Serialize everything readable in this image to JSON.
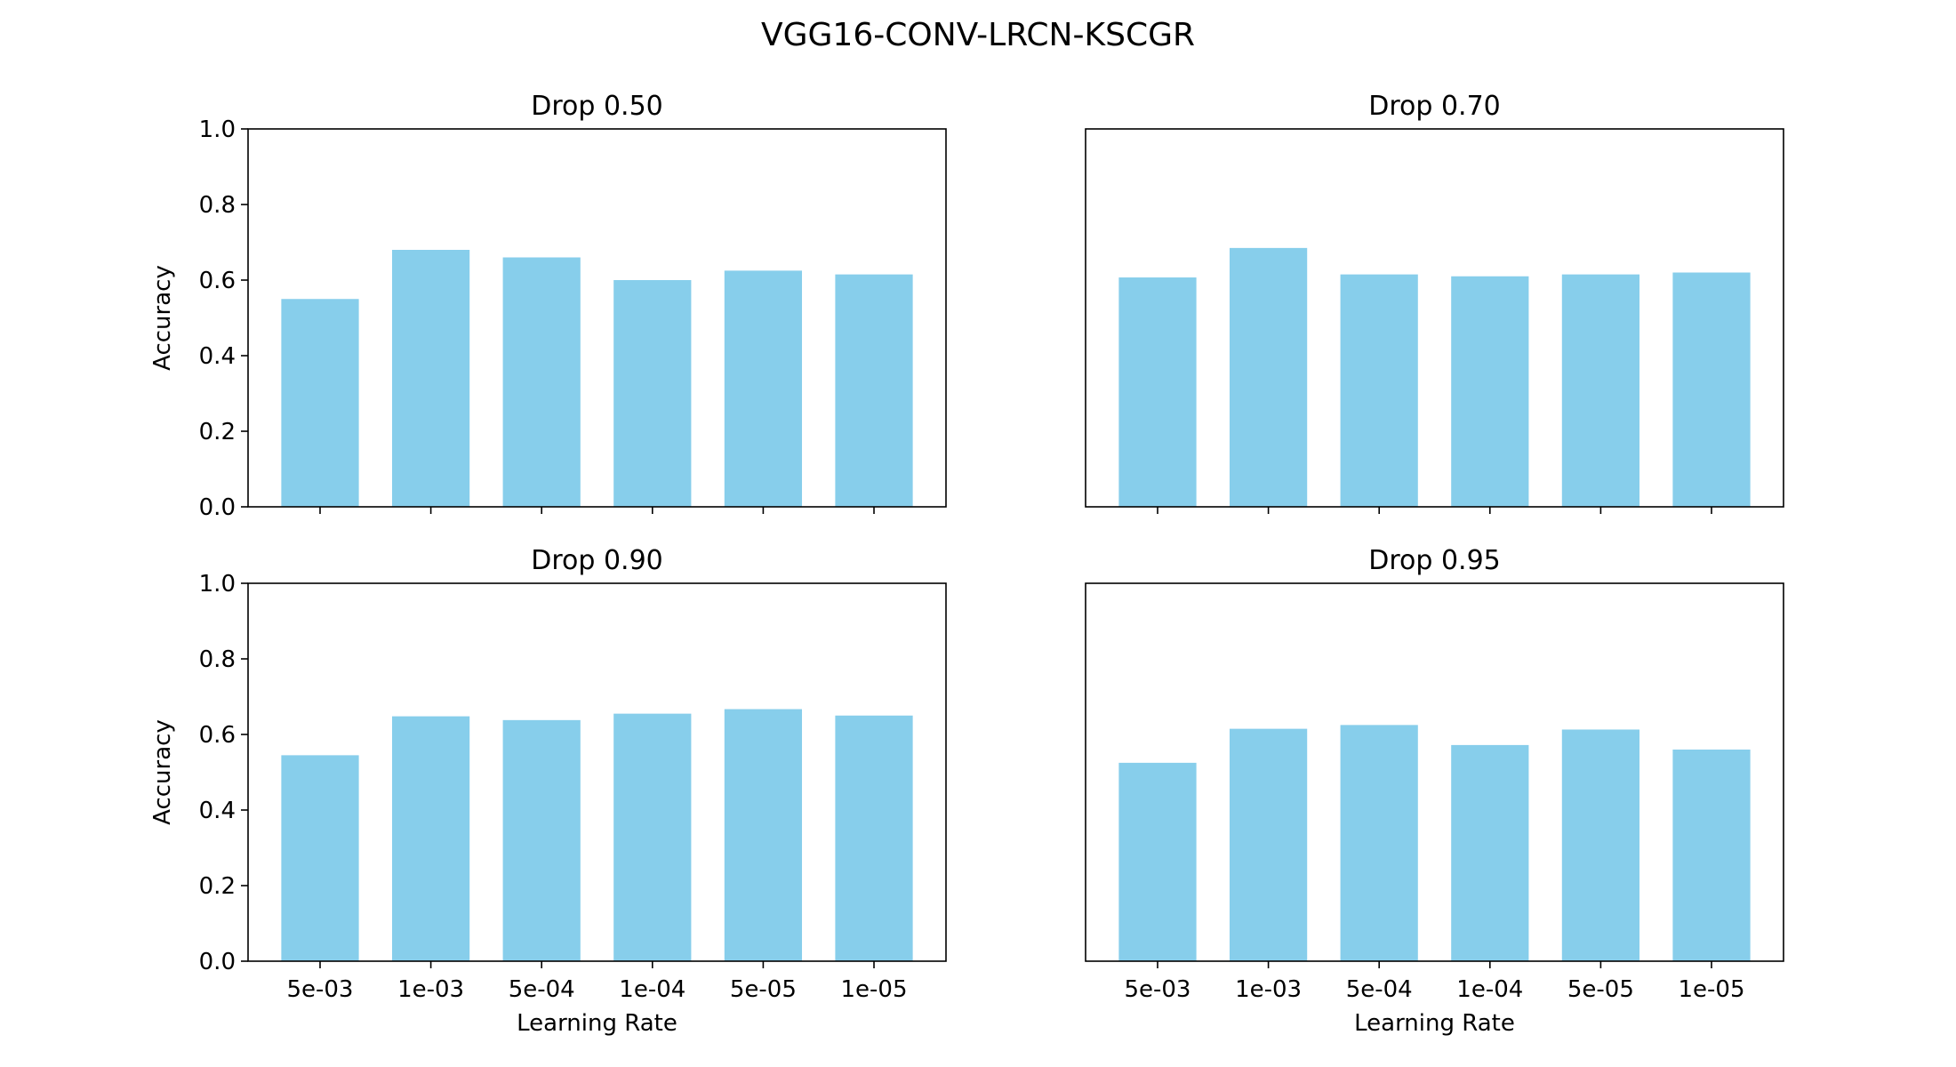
{
  "figure": {
    "title": "VGG16-CONV-LRCN-KSCGR",
    "bar_color": "#87CEEB"
  },
  "chart_data": [
    {
      "type": "bar",
      "title": "Drop 0.50",
      "categories": [
        "5e-03",
        "1e-03",
        "5e-04",
        "1e-04",
        "5e-05",
        "1e-05"
      ],
      "values": [
        0.55,
        0.68,
        0.66,
        0.6,
        0.625,
        0.615
      ],
      "ylabel": "Accuracy",
      "xlabel": "",
      "ylim": [
        0,
        1
      ],
      "yticks": [
        "0.0",
        "0.2",
        "0.4",
        "0.6",
        "0.8",
        "1.0"
      ],
      "show_yticks": true,
      "show_xticks": false
    },
    {
      "type": "bar",
      "title": "Drop 0.70",
      "categories": [
        "5e-03",
        "1e-03",
        "5e-04",
        "1e-04",
        "5e-05",
        "1e-05"
      ],
      "values": [
        0.607,
        0.685,
        0.615,
        0.61,
        0.615,
        0.62
      ],
      "ylabel": "",
      "xlabel": "",
      "ylim": [
        0,
        1
      ],
      "yticks": [
        "0.0",
        "0.2",
        "0.4",
        "0.6",
        "0.8",
        "1.0"
      ],
      "show_yticks": false,
      "show_xticks": false
    },
    {
      "type": "bar",
      "title": "Drop 0.90",
      "categories": [
        "5e-03",
        "1e-03",
        "5e-04",
        "1e-04",
        "5e-05",
        "1e-05"
      ],
      "values": [
        0.545,
        0.648,
        0.638,
        0.655,
        0.667,
        0.65
      ],
      "ylabel": "Accuracy",
      "xlabel": "Learning Rate",
      "ylim": [
        0,
        1
      ],
      "yticks": [
        "0.0",
        "0.2",
        "0.4",
        "0.6",
        "0.8",
        "1.0"
      ],
      "show_yticks": true,
      "show_xticks": true
    },
    {
      "type": "bar",
      "title": "Drop 0.95",
      "categories": [
        "5e-03",
        "1e-03",
        "5e-04",
        "1e-04",
        "5e-05",
        "1e-05"
      ],
      "values": [
        0.525,
        0.615,
        0.625,
        0.572,
        0.613,
        0.56
      ],
      "ylabel": "",
      "xlabel": "Learning Rate",
      "ylim": [
        0,
        1
      ],
      "yticks": [
        "0.0",
        "0.2",
        "0.4",
        "0.6",
        "0.8",
        "1.0"
      ],
      "show_yticks": false,
      "show_xticks": true
    }
  ]
}
